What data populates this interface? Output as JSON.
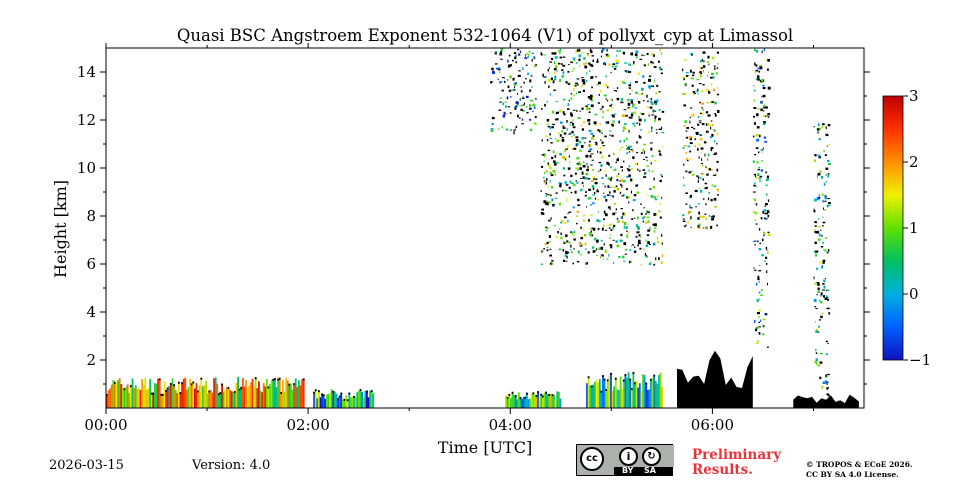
{
  "chart_data": {
    "type": "heatmap",
    "title": "Quasi BSC Angstroem Exponent 532-1064 (V1) of pollyxt_cyp at Limassol",
    "xlabel": "Time [UTC]",
    "ylabel": "Height [km]",
    "xlim_hours": [
      0,
      7.5
    ],
    "ylim_km": [
      0,
      15
    ],
    "x_ticks": [
      {
        "hour": 0,
        "label": "00:00"
      },
      {
        "hour": 2,
        "label": "02:00"
      },
      {
        "hour": 4,
        "label": "04:00"
      },
      {
        "hour": 6,
        "label": "06:00"
      }
    ],
    "x_minor_hours": [
      1,
      3,
      5,
      7
    ],
    "y_ticks": [
      {
        "km": 2,
        "label": "2"
      },
      {
        "km": 4,
        "label": "4"
      },
      {
        "km": 6,
        "label": "6"
      },
      {
        "km": 8,
        "label": "8"
      },
      {
        "km": 10,
        "label": "10"
      },
      {
        "km": 12,
        "label": "12"
      },
      {
        "km": 14,
        "label": "14"
      }
    ],
    "colorbar": {
      "range": [
        -1,
        3
      ],
      "ticks": [
        {
          "value": 3,
          "label": "3"
        },
        {
          "value": 2,
          "label": "2"
        },
        {
          "value": 1,
          "label": "1"
        },
        {
          "value": 0,
          "label": "0"
        },
        {
          "value": -1,
          "label": "−1"
        }
      ],
      "colors": [
        "#1010c0",
        "#0060ff",
        "#00b0e0",
        "#00c060",
        "#60e000",
        "#f0f000",
        "#ff9000",
        "#ff3000",
        "#c00000"
      ]
    },
    "masked_color": "#000000",
    "features": [
      {
        "name": "near-surface layer",
        "t0": 0.0,
        "t1": 1.95,
        "h0": 0.0,
        "h1": 1.3,
        "value": 1.6
      },
      {
        "name": "near-surface patch",
        "t0": 2.05,
        "t1": 2.65,
        "h0": 0.0,
        "h1": 0.8,
        "value": 0.2
      },
      {
        "name": "near-surface patch",
        "t0": 3.95,
        "t1": 4.5,
        "h0": 0.0,
        "h1": 0.7,
        "value": 0.6
      },
      {
        "name": "near-surface patch",
        "t0": 4.75,
        "t1": 5.5,
        "h0": 0.0,
        "h1": 1.5,
        "value": 0.5
      },
      {
        "name": "cirrus streak 1",
        "t0": 3.8,
        "t1": 4.25,
        "h0": 11.5,
        "h1": 15.0,
        "value": 0.0
      },
      {
        "name": "cirrus fall-streak",
        "t0": 4.3,
        "t1": 5.5,
        "h0": 6.0,
        "h1": 15.0,
        "value": 0.8
      },
      {
        "name": "cirrus column",
        "t0": 5.7,
        "t1": 6.05,
        "h0": 7.5,
        "h1": 15.0,
        "value": 1.0
      },
      {
        "name": "cloud column",
        "t0": 6.4,
        "t1": 6.55,
        "h0": 2.5,
        "h1": 15.0,
        "value": 0.3
      },
      {
        "name": "cloud column",
        "t0": 7.0,
        "t1": 7.15,
        "h0": 0.5,
        "h1": 12.0,
        "value": 0.5
      },
      {
        "name": "low cloud",
        "t0": 5.65,
        "t1": 6.4,
        "h0": 0.0,
        "h1": 2.4,
        "value": -1.0
      },
      {
        "name": "low cloud",
        "t0": 6.8,
        "t1": 7.45,
        "h0": 0.0,
        "h1": 0.6,
        "value": -1.0
      }
    ]
  },
  "footer": {
    "date": "2026-03-15",
    "version": "Version: 4.0",
    "license_badge": {
      "by": "BY",
      "sa": "SA"
    },
    "preliminary": [
      "Preliminary",
      "Results."
    ],
    "copyright": [
      "© TROPOS & ECoE 2026.",
      "CC BY SA 4.0 License."
    ]
  }
}
